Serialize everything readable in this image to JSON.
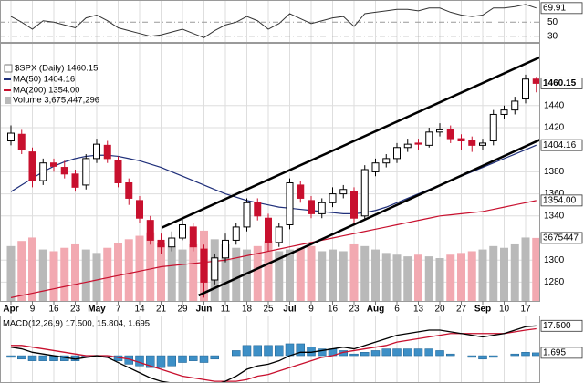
{
  "chart_data": {
    "type": "candlestick",
    "legend_title": "$SPX (Daily) 1460.15",
    "categories": [
      "Apr",
      null,
      "9",
      null,
      "16",
      null,
      "23",
      null,
      "May",
      null,
      "7",
      null,
      "14",
      null,
      "21",
      null,
      "29",
      null,
      "Jun",
      null,
      "11",
      null,
      "18",
      null,
      "25",
      null,
      "Jul",
      null,
      "9",
      null,
      "16",
      null,
      "23",
      null,
      "Aug",
      null,
      "6",
      null,
      "13",
      null,
      "20",
      null,
      "27",
      null,
      "Sep",
      null,
      "10",
      null,
      "17",
      null
    ],
    "open": [
      1408,
      1414,
      1398,
      1372,
      1388,
      1384,
      1378,
      1368,
      1392,
      1404,
      1390,
      1370,
      1354,
      1336,
      1318,
      1312,
      1320,
      1330,
      1310,
      1282,
      1302,
      1318,
      1330,
      1352,
      1338,
      1316,
      1332,
      1368,
      1354,
      1342,
      1352,
      1360,
      1362,
      1340,
      1380,
      1388,
      1392,
      1402,
      1406,
      1404,
      1416,
      1418,
      1410,
      1408,
      1404,
      1408,
      1432,
      1436,
      1446,
      1464
    ],
    "high": [
      1422,
      1418,
      1402,
      1392,
      1392,
      1390,
      1382,
      1396,
      1410,
      1408,
      1394,
      1374,
      1358,
      1340,
      1324,
      1326,
      1338,
      1334,
      1314,
      1306,
      1324,
      1334,
      1356,
      1356,
      1342,
      1334,
      1374,
      1372,
      1358,
      1356,
      1366,
      1368,
      1366,
      1386,
      1392,
      1396,
      1406,
      1410,
      1410,
      1420,
      1424,
      1422,
      1414,
      1412,
      1410,
      1436,
      1440,
      1448,
      1468,
      1466
    ],
    "low": [
      1404,
      1396,
      1366,
      1368,
      1380,
      1374,
      1362,
      1364,
      1388,
      1388,
      1366,
      1350,
      1334,
      1314,
      1306,
      1308,
      1318,
      1308,
      1266,
      1278,
      1298,
      1314,
      1326,
      1336,
      1308,
      1312,
      1328,
      1352,
      1338,
      1338,
      1348,
      1356,
      1334,
      1336,
      1376,
      1384,
      1388,
      1398,
      1400,
      1402,
      1412,
      1406,
      1400,
      1398,
      1400,
      1404,
      1428,
      1432,
      1442,
      1452
    ],
    "close": [
      1415,
      1400,
      1372,
      1388,
      1385,
      1378,
      1366,
      1392,
      1405,
      1392,
      1370,
      1356,
      1338,
      1318,
      1312,
      1320,
      1332,
      1312,
      1280,
      1302,
      1318,
      1330,
      1352,
      1340,
      1316,
      1330,
      1370,
      1356,
      1342,
      1352,
      1360,
      1364,
      1338,
      1382,
      1388,
      1392,
      1402,
      1405,
      1405,
      1416,
      1418,
      1410,
      1408,
      1404,
      1406,
      1432,
      1436,
      1444,
      1464,
      1460.15
    ],
    "up_color": "#000000",
    "down_color": "#c8102e",
    "ylim": [
      1263,
      1496
    ],
    "yticks": [
      1280,
      1300,
      1340,
      1360,
      1380,
      1420,
      1440
    ],
    "grid": true,
    "price_markers": [
      {
        "value": 1460.15,
        "label": "1460.15"
      },
      {
        "value": 1404.16,
        "label": "1404.16"
      },
      {
        "value": 1354,
        "label": "1354.00"
      }
    ],
    "series": [
      {
        "name": "MA(50) 1404.16",
        "color": "#1f2f7a",
        "values": [
          1362,
          1368,
          1374,
          1380,
          1385,
          1389,
          1392,
          1394,
          1395,
          1395,
          1394,
          1392,
          1390,
          1387,
          1384,
          1380,
          1376,
          1372,
          1368,
          1364,
          1360,
          1357,
          1354,
          1352,
          1350,
          1348,
          1347,
          1346,
          1345,
          1344,
          1343,
          1342,
          1342,
          1343,
          1345,
          1348,
          1352,
          1356,
          1360,
          1364,
          1368,
          1372,
          1376,
          1380,
          1384,
          1388,
          1392,
          1396,
          1400,
          1404.16
        ]
      },
      {
        "name": "MA(200) 1354.00",
        "color": "#c8102e",
        "values": [
          1266,
          1268,
          1270,
          1272,
          1274,
          1276,
          1278,
          1280,
          1282,
          1284,
          1286,
          1288,
          1290,
          1292,
          1294,
          1295,
          1296,
          1297,
          1298,
          1299,
          1300,
          1302,
          1304,
          1306,
          1308,
          1310,
          1312,
          1314,
          1316,
          1318,
          1320,
          1322,
          1324,
          1326,
          1328,
          1330,
          1332,
          1334,
          1336,
          1338,
          1340,
          1341,
          1342,
          1343,
          1344,
          1346,
          1348,
          1350,
          1352,
          1354
        ]
      }
    ],
    "volume": {
      "name": "Volume 3,675,447,296",
      "color": "#777777",
      "up_color": "#b9b9b9",
      "down_color": "#f2a9b1",
      "ylim": [
        0,
        5000000000
      ],
      "values": [
        3200000000,
        3500000000,
        3700000000,
        3000000000,
        2900000000,
        3100000000,
        3300000000,
        3000000000,
        2800000000,
        3100000000,
        3400000000,
        3600000000,
        3800000000,
        4000000000,
        3400000000,
        3200000000,
        3000000000,
        3300000000,
        4100000000,
        3600000000,
        3300000000,
        3100000000,
        3000000000,
        3200000000,
        3500000000,
        2900000000,
        3000000000,
        3100000000,
        3200000000,
        2900000000,
        3000000000,
        2900000000,
        3300000000,
        3200000000,
        3000000000,
        2800000000,
        2700000000,
        2600000000,
        2700000000,
        2600000000,
        2500000000,
        2700000000,
        2800000000,
        2900000000,
        3000000000,
        3200000000,
        3100000000,
        3300000000,
        3700000000,
        3675447296
      ],
      "marker": {
        "value": 3675447296,
        "label": "3675447"
      }
    },
    "trendlines": [
      {
        "x1": 14.1,
        "y1": 1329.5,
        "x2": 49.6,
        "y2": 1485
      },
      {
        "x1": 17.5,
        "y1": 1268,
        "x2": 50,
        "y2": 1412
      }
    ],
    "rsi": {
      "color": "#333333",
      "ylim": [
        22,
        80
      ],
      "yticks": [
        30,
        50
      ],
      "values": [
        58,
        50,
        40,
        52,
        50,
        46,
        42,
        56,
        60,
        52,
        42,
        38,
        34,
        30,
        32,
        36,
        40,
        34,
        28,
        38,
        46,
        50,
        58,
        52,
        40,
        48,
        62,
        55,
        48,
        52,
        56,
        58,
        44,
        62,
        64,
        66,
        68,
        68,
        66,
        70,
        70,
        64,
        60,
        58,
        60,
        70,
        70,
        72,
        75,
        69.91
      ],
      "marker": 69.91
    },
    "macd": {
      "label": "MACD(12,26,9) 17.500, 15.804, 1.695",
      "ylim": [
        -16,
        23
      ],
      "macd": {
        "color": "#000000",
        "values": [
          5,
          4,
          2,
          1,
          0,
          -1,
          -2,
          -1,
          0,
          -1,
          -4,
          -7,
          -10,
          -13,
          -15,
          -16,
          -16,
          -16,
          -18,
          -17,
          -15,
          -12,
          -8,
          -6,
          -5,
          -3,
          0,
          2,
          2,
          3,
          4,
          5,
          4,
          6,
          8,
          10,
          12,
          13,
          14,
          15,
          15,
          14,
          13,
          12,
          11,
          12,
          13,
          15,
          17,
          17.5
        ]
      },
      "signal": {
        "color": "#c8102e",
        "values": [
          6,
          6,
          5,
          4,
          3,
          2,
          1,
          0,
          0,
          0,
          -1,
          -2,
          -4,
          -6,
          -8,
          -10,
          -12,
          -13,
          -14,
          -15,
          -15,
          -15,
          -14,
          -12,
          -11,
          -9,
          -7,
          -5,
          -3,
          -1,
          0,
          2,
          3,
          4,
          5,
          6,
          8,
          9,
          10,
          11,
          12,
          13,
          13,
          13,
          13,
          13,
          13,
          14,
          15,
          15.804
        ]
      },
      "histogram": {
        "color": "#3d8fc6",
        "values": [
          -1,
          -2,
          -3,
          -3,
          -3,
          -3,
          -3,
          -1,
          0,
          -1,
          -3,
          -5,
          -6,
          -7,
          -7,
          -6,
          -4,
          -3,
          -4,
          -2,
          0,
          3,
          6,
          6,
          6,
          6,
          7,
          7,
          5,
          4,
          4,
          3,
          1,
          2,
          3,
          4,
          4,
          4,
          4,
          4,
          3,
          1,
          0,
          -1,
          -2,
          -1,
          0,
          1,
          2,
          1.695
        ]
      },
      "markers": [
        {
          "value": 17.5,
          "label": "17.500"
        },
        1.695
      ]
    }
  }
}
